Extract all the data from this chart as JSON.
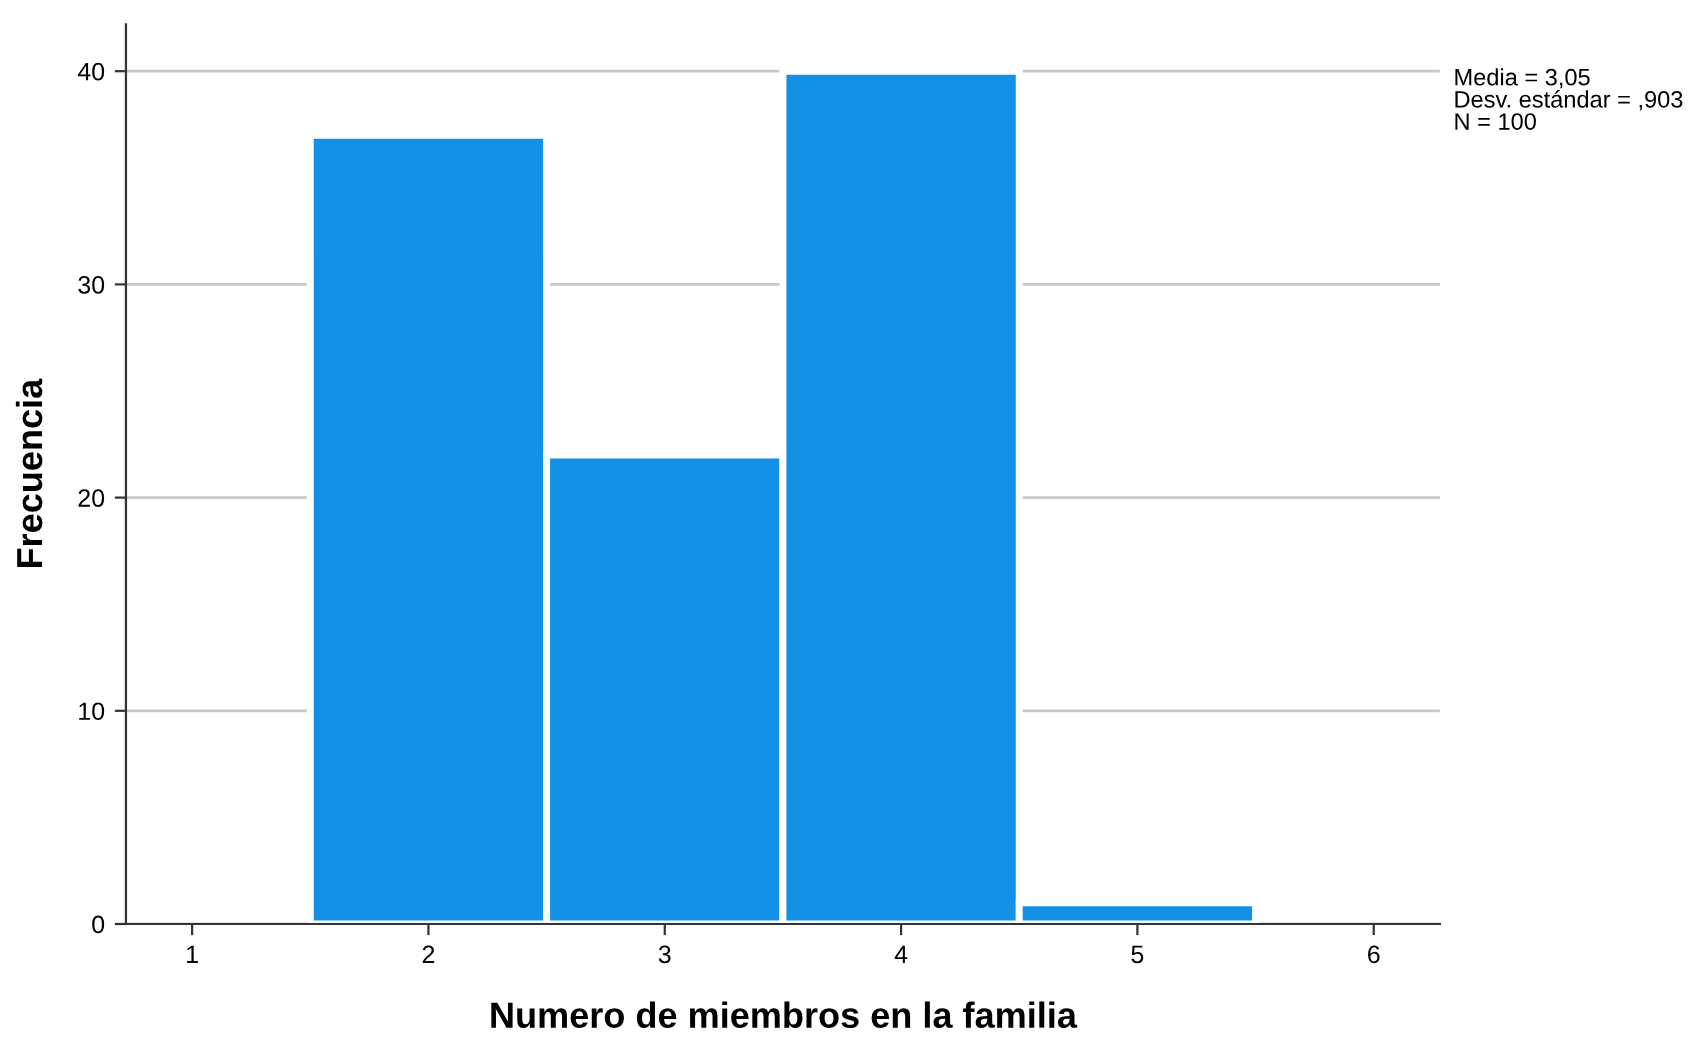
{
  "chart_data": {
    "type": "histogram",
    "xlabel": "Numero de miembros en la familia",
    "ylabel": "Frecuencia",
    "bins": [
      1.5,
      2.5,
      3.5,
      4.5,
      5.5
    ],
    "values": [
      37,
      22,
      40,
      1
    ],
    "color": "#1391e6",
    "xlim": [
      0.72,
      6.28
    ],
    "xticks": [
      1,
      2,
      3,
      4,
      5,
      6
    ],
    "ylim": [
      0,
      42.2
    ],
    "yticks": [
      0,
      10,
      20,
      30,
      40
    ],
    "grid": "y",
    "annotations": [
      "Media = 3,05",
      "Desv. estándar = ,903",
      "N = 100"
    ]
  }
}
